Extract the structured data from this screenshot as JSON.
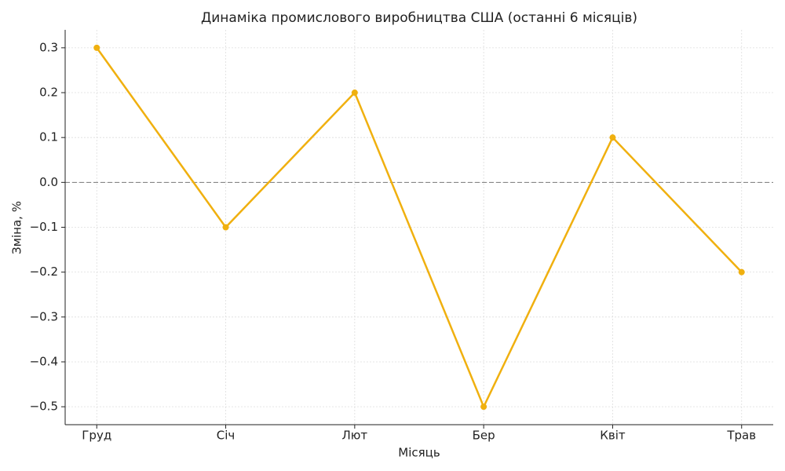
{
  "chart_data": {
    "type": "line",
    "title": "Динаміка промислового виробництва США (останні 6 місяців)",
    "x_label": "Місяць",
    "y_label": "Зміна, %",
    "categories": [
      "Груд",
      "Січ",
      "Лют",
      "Бер",
      "Квіт",
      "Трав"
    ],
    "series": [
      {
        "name": "Зміна",
        "color": "#f0b00f",
        "values": [
          0.3,
          -0.1,
          0.2,
          -0.5,
          0.1,
          -0.2
        ]
      }
    ],
    "ylim": [
      -0.54,
      0.34
    ],
    "yticks": [
      {
        "value": -0.5,
        "label": "−0.5"
      },
      {
        "value": -0.4,
        "label": "−0.4"
      },
      {
        "value": -0.3,
        "label": "−0.3"
      },
      {
        "value": -0.2,
        "label": "−0.2"
      },
      {
        "value": -0.1,
        "label": "−0.1"
      },
      {
        "value": 0,
        "label": "0.0"
      },
      0.1,
      0.2,
      0.3
    ],
    "grid": true
  }
}
